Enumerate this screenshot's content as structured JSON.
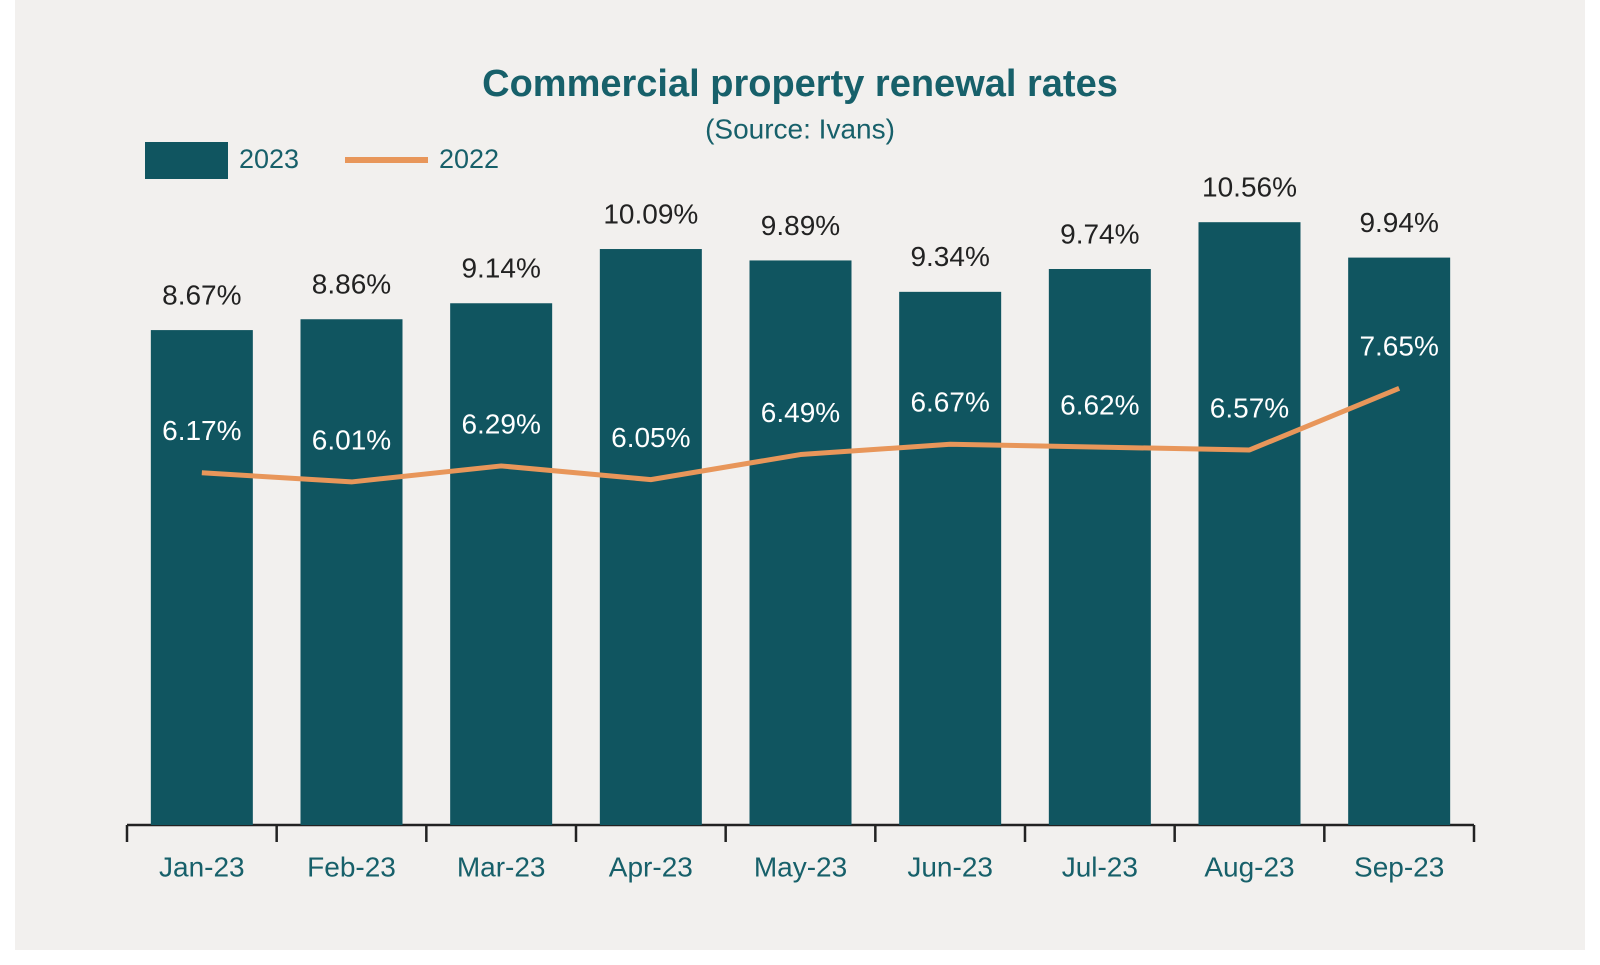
{
  "chart_data": {
    "type": "bar",
    "title": "Commercial property renewal rates",
    "subtitle": "(Source: Ivans)",
    "categories": [
      "Jan-23",
      "Feb-23",
      "Mar-23",
      "Apr-23",
      "May-23",
      "Jun-23",
      "Jul-23",
      "Aug-23",
      "Sep-23"
    ],
    "series": [
      {
        "name": "2023",
        "type": "bar",
        "color": "#105560",
        "values": [
          8.67,
          8.86,
          9.14,
          10.09,
          9.89,
          9.34,
          9.74,
          10.56,
          9.94
        ],
        "value_labels": [
          "8.67%",
          "8.86%",
          "9.14%",
          "10.09%",
          "9.89%",
          "9.34%",
          "9.74%",
          "10.56%",
          "9.94%"
        ]
      },
      {
        "name": "2022",
        "type": "line",
        "color": "#e8965a",
        "values": [
          6.17,
          6.01,
          6.29,
          6.05,
          6.49,
          6.67,
          6.62,
          6.57,
          7.65
        ],
        "value_labels": [
          "6.17%",
          "6.01%",
          "6.29%",
          "6.05%",
          "6.49%",
          "6.67%",
          "6.62%",
          "6.57%",
          "7.65%"
        ]
      }
    ],
    "ylim": [
      0,
      12
    ],
    "legend": "top-left"
  }
}
